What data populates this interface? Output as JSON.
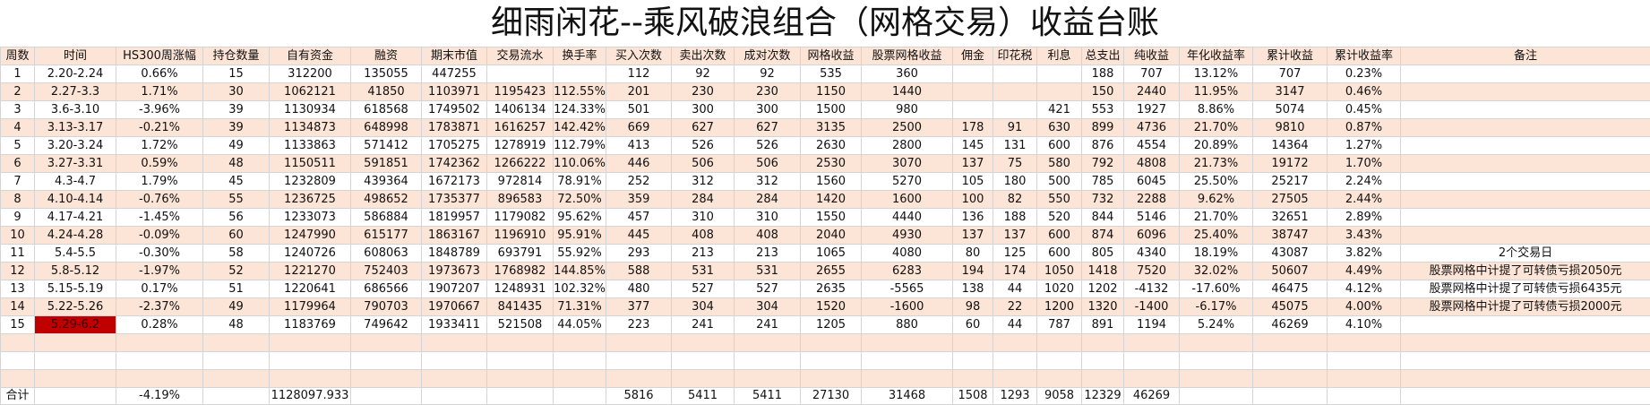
{
  "title": "细雨闲花--乘风破浪组合（网格交易）收益台账",
  "table": {
    "header": [
      "周数",
      "时间",
      "HS300周涨幅",
      "持仓数量",
      "自有资金",
      "融资",
      "期末市值",
      "交易流水",
      "换手率",
      "买入次数",
      "卖出次数",
      "成对次数",
      "网格收益",
      "股票网格收益",
      "佣金",
      "印花税",
      "利息",
      "总支出",
      "纯收益",
      "年化收益率",
      "累计收益",
      "累计收益率",
      "备注"
    ],
    "rows": [
      [
        "1",
        "2.20-2.24",
        "0.66%",
        "15",
        "312200",
        "135055",
        "447255",
        null,
        null,
        "112",
        "92",
        "92",
        "535",
        "360",
        null,
        null,
        null,
        "188",
        "707",
        "13.12%",
        "707",
        "0.23%",
        null
      ],
      [
        "2",
        "2.27-3.3",
        "1.71%",
        "30",
        "1062121",
        "41850",
        "1103971",
        "1195423",
        "112.55%",
        "201",
        "230",
        "230",
        "1150",
        "1440",
        null,
        null,
        null,
        "150",
        "2440",
        "11.95%",
        "3147",
        "0.46%",
        null
      ],
      [
        "3",
        "3.6-3.10",
        "-3.96%",
        "39",
        "1130934",
        "618568",
        "1749502",
        "1406134",
        "124.33%",
        "501",
        "300",
        "300",
        "1500",
        "980",
        null,
        null,
        "421",
        "553",
        "1927",
        "8.86%",
        "5074",
        "0.45%",
        null
      ],
      [
        "4",
        "3.13-3.17",
        "-0.21%",
        "39",
        "1134873",
        "648998",
        "1783871",
        "1616257",
        "142.42%",
        "669",
        "627",
        "627",
        "3135",
        "2500",
        "178",
        "91",
        "630",
        "899",
        "4736",
        "21.70%",
        "9810",
        "0.87%",
        null
      ],
      [
        "5",
        "3.20-3.24",
        "1.72%",
        "49",
        "1133863",
        "571412",
        "1705275",
        "1278919",
        "112.79%",
        "413",
        "526",
        "526",
        "2630",
        "2800",
        "145",
        "131",
        "600",
        "876",
        "4554",
        "20.89%",
        "14364",
        "1.27%",
        null
      ],
      [
        "6",
        "3.27-3.31",
        "0.59%",
        "48",
        "1150511",
        "591851",
        "1742362",
        "1266222",
        "110.06%",
        "446",
        "506",
        "506",
        "2530",
        "3070",
        "137",
        "75",
        "580",
        "792",
        "4808",
        "21.73%",
        "19172",
        "1.70%",
        null
      ],
      [
        "7",
        "4.3-4.7",
        "1.79%",
        "45",
        "1232809",
        "439364",
        "1672173",
        "972814",
        "78.91%",
        "252",
        "312",
        "312",
        "1560",
        "5270",
        "105",
        "180",
        "500",
        "785",
        "6045",
        "25.50%",
        "25217",
        "2.24%",
        null
      ],
      [
        "8",
        "4.10-4.14",
        "-0.76%",
        "55",
        "1236725",
        "498652",
        "1735377",
        "896583",
        "72.50%",
        "359",
        "284",
        "284",
        "1420",
        "1600",
        "100",
        "82",
        "550",
        "732",
        "2288",
        "9.62%",
        "27505",
        "2.44%",
        null
      ],
      [
        "9",
        "4.17-4.21",
        "-1.45%",
        "56",
        "1233073",
        "586884",
        "1819957",
        "1179082",
        "95.62%",
        "457",
        "310",
        "310",
        "1550",
        "4440",
        "136",
        "188",
        "520",
        "844",
        "5146",
        "21.70%",
        "32651",
        "2.89%",
        null
      ],
      [
        "10",
        "4.24-4.28",
        "-0.09%",
        "60",
        "1247990",
        "615177",
        "1863167",
        "1196910",
        "95.91%",
        "445",
        "408",
        "408",
        "2040",
        "4930",
        "137",
        "137",
        "600",
        "874",
        "6096",
        "25.40%",
        "38747",
        "3.43%",
        null
      ],
      [
        "11",
        "5.4-5.5",
        "-0.30%",
        "58",
        "1240726",
        "608063",
        "1848789",
        "693791",
        "55.92%",
        "293",
        "213",
        "213",
        "1065",
        "4080",
        "80",
        "125",
        "600",
        "805",
        "4340",
        "18.19%",
        "43087",
        "3.82%",
        "2个交易日"
      ],
      [
        "12",
        "5.8-5.12",
        "-1.97%",
        "52",
        "1221270",
        "752403",
        "1973673",
        "1768982",
        "144.85%",
        "588",
        "531",
        "531",
        "2655",
        "6283",
        "194",
        "174",
        "1050",
        "1418",
        "7520",
        "32.02%",
        "50607",
        "4.49%",
        "股票网格中计提了可转债亏损2050元"
      ],
      [
        "13",
        "5.15-5.19",
        "0.17%",
        "51",
        "1220641",
        "686566",
        "1907207",
        "1248931",
        "102.32%",
        "480",
        "527",
        "527",
        "2635",
        "-5565",
        "138",
        "44",
        "1020",
        "1202",
        "-4132",
        "-17.60%",
        "46475",
        "4.12%",
        "股票网格中计提了可转债亏损6435元"
      ],
      [
        "14",
        "5.22-5.26",
        "-2.37%",
        "49",
        "1179964",
        "790703",
        "1970667",
        "841435",
        "71.31%",
        "377",
        "304",
        "304",
        "1520",
        "-1600",
        "98",
        "22",
        "1200",
        "1320",
        "-1400",
        "-6.17%",
        "45075",
        "4.00%",
        "股票网格中计提了可转债亏损2000元"
      ],
      [
        "15",
        "5.29-6.2",
        "0.28%",
        "48",
        "1183769",
        "749642",
        "1933411",
        "521508",
        "44.05%",
        "223",
        "241",
        "241",
        "1205",
        "880",
        "60",
        "44",
        "787",
        "891",
        "1194",
        "5.24%",
        "46269",
        "4.10%",
        null
      ]
    ],
    "total": [
      "合计",
      null,
      "-4.19%",
      null,
      "1128097.933",
      null,
      null,
      null,
      null,
      "5816",
      "5411",
      "5411",
      "27130",
      "31468",
      "1508",
      "1293",
      "9058",
      "12329",
      "46269",
      null,
      null,
      null,
      null
    ]
  }
}
